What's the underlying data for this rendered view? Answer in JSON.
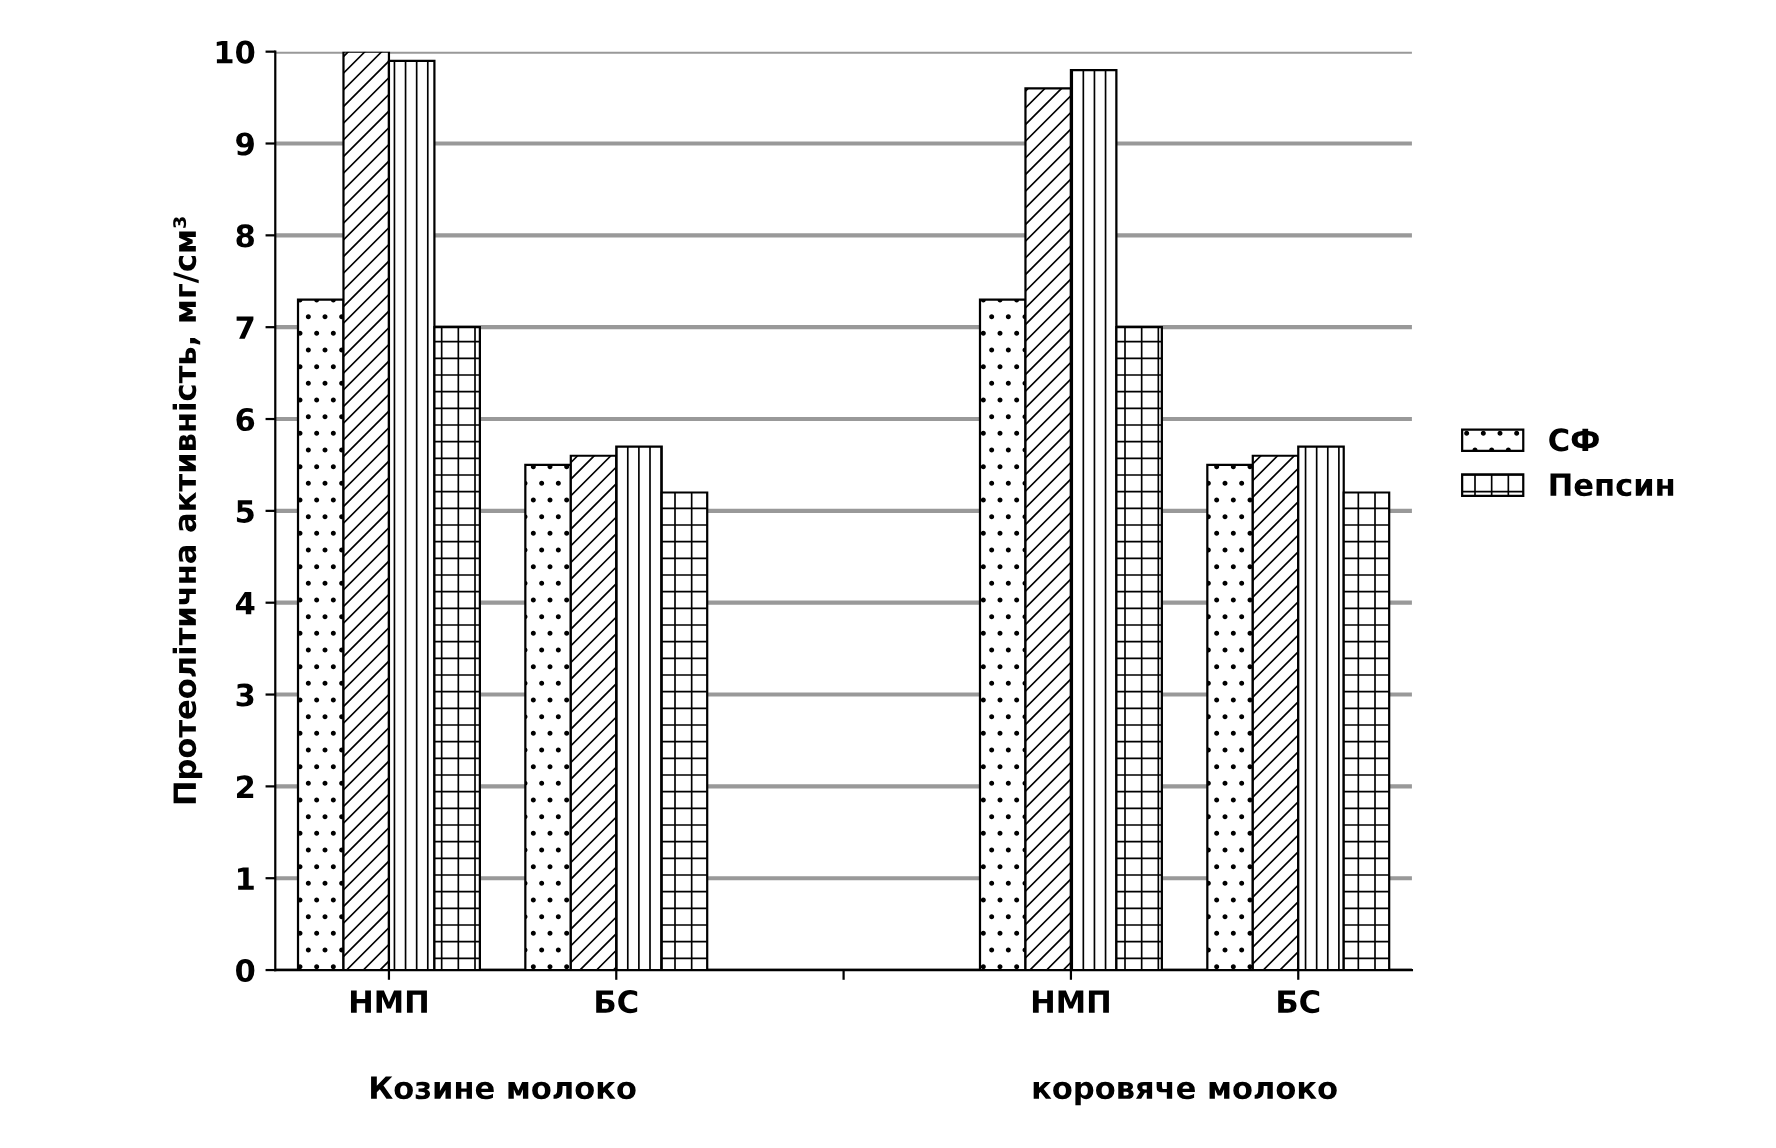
{
  "chart_data": {
    "type": "bar",
    "ylabel": "Протеолітична активність, мг/см³",
    "categories": [
      "НМП",
      "БС",
      null,
      "НМП",
      "БС"
    ],
    "series": [
      {
        "name": "СФ",
        "color": "#000000",
        "values": [
          7.3,
          5.5,
          null,
          7.3,
          5.5
        ]
      },
      {
        "color": "#000000",
        "values": [
          10.0,
          5.6,
          null,
          9.6,
          5.6
        ]
      },
      {
        "color": "#000000",
        "values": [
          9.9,
          5.7,
          null,
          9.8,
          5.7
        ]
      },
      {
        "name": "Пепсин",
        "color": "#000000",
        "values": [
          7.0,
          5.2,
          null,
          7.0,
          5.2
        ]
      }
    ],
    "annotations": [
      "Козине молоко",
      "коровяче молоко"
    ],
    "ylim": [
      0,
      10
    ],
    "yticks": [
      0,
      1,
      2,
      3,
      4,
      5,
      6,
      7,
      8,
      9,
      10
    ],
    "grid": "y",
    "legend": "right"
  }
}
